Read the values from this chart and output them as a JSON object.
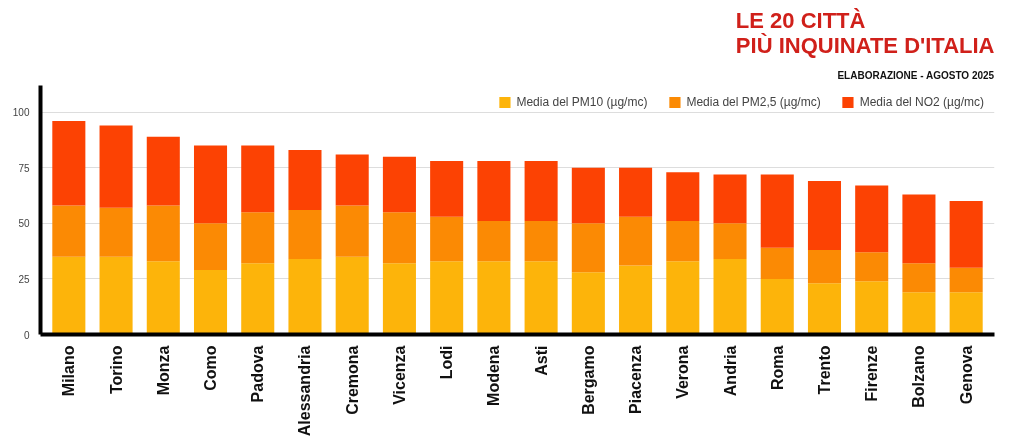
{
  "chart_data": {
    "type": "bar",
    "stacked": true,
    "title": "LE 20 CITTÀ\nPIÙ INQUINATE D'ITALIA",
    "subtitle": "ELABORAZIONE - AGOSTO 2025",
    "categories": [
      "Milano",
      "Torino",
      "Monza",
      "Como",
      "Padova",
      "Alessandria",
      "Cremona",
      "Vicenza",
      "Lodi",
      "Modena",
      "Asti",
      "Bergamo",
      "Piacenza",
      "Verona",
      "Andria",
      "Roma",
      "Trento",
      "Firenze",
      "Bolzano",
      "Genova"
    ],
    "series": [
      {
        "name": "Media del PM10 (µg/mc)",
        "color": "#fdb40a",
        "values": [
          35,
          35,
          33,
          29,
          32,
          34,
          35,
          32,
          33,
          33,
          33,
          28,
          31,
          33,
          34,
          25,
          23,
          24,
          19,
          19
        ]
      },
      {
        "name": "Media del PM2,5 (µg/mc)",
        "color": "#fb8a04",
        "values": [
          23,
          22,
          25,
          21,
          23,
          22,
          23,
          23,
          20,
          18,
          18,
          22,
          22,
          18,
          16,
          14,
          15,
          13,
          13,
          11
        ]
      },
      {
        "name": "Media del NO2 (µg/mc)",
        "color": "#fc4203",
        "values": [
          38,
          37,
          31,
          35,
          30,
          27,
          23,
          25,
          25,
          27,
          27,
          25,
          22,
          22,
          22,
          33,
          31,
          30,
          31,
          30
        ]
      }
    ],
    "ylim": [
      0,
      112
    ],
    "yticks": [
      0,
      25,
      50,
      75,
      100
    ],
    "grid": "y",
    "legend": "top right"
  }
}
